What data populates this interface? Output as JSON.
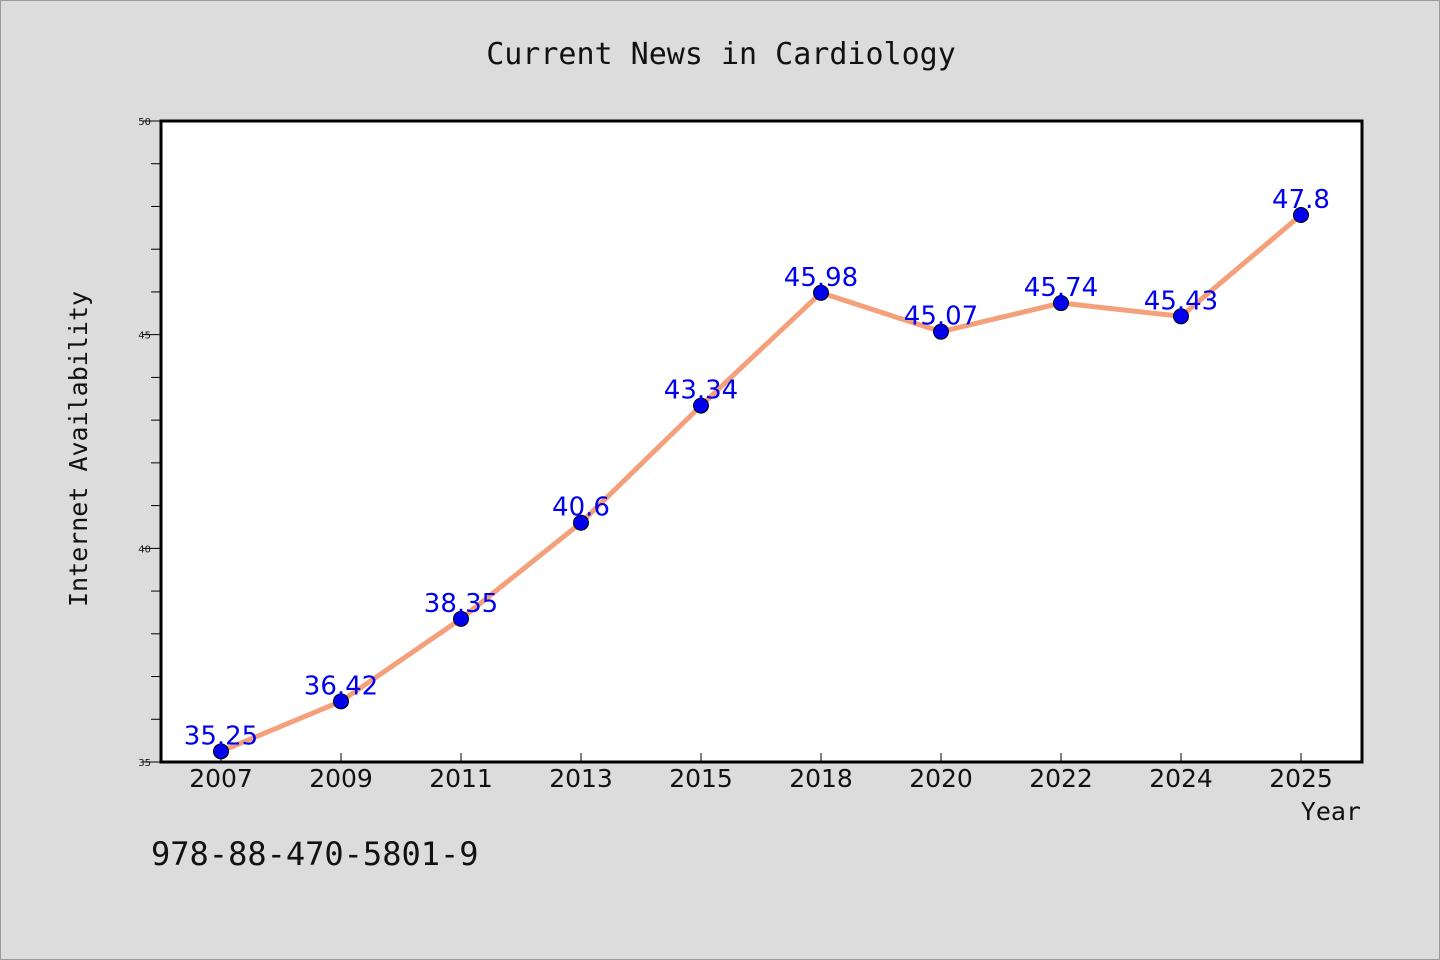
{
  "chart_data": {
    "type": "line",
    "title": "Current News in Cardiology",
    "xlabel": "Year",
    "ylabel": "Internet Availability",
    "categories": [
      "2007",
      "2009",
      "2011",
      "2013",
      "2015",
      "2018",
      "2020",
      "2022",
      "2024",
      "2025"
    ],
    "series": [
      {
        "values": [
          35.25,
          36.42,
          38.35,
          40.6,
          43.34,
          45.98,
          45.07,
          45.74,
          45.43,
          47.8
        ],
        "labels": [
          "35.25",
          "36.42",
          "38.35",
          "40.6",
          "43.34",
          "45.98",
          "45.07",
          "45.74",
          "45.43",
          "47.8"
        ]
      }
    ],
    "ylim": [
      35,
      50
    ],
    "yticks": [
      "35",
      "40",
      "45",
      "50"
    ],
    "grid": false,
    "line_color": "#f4a07a",
    "marker_color": "#0000ee",
    "label_color": "#0000ee"
  },
  "annotation": "978-88-470-5801-9"
}
